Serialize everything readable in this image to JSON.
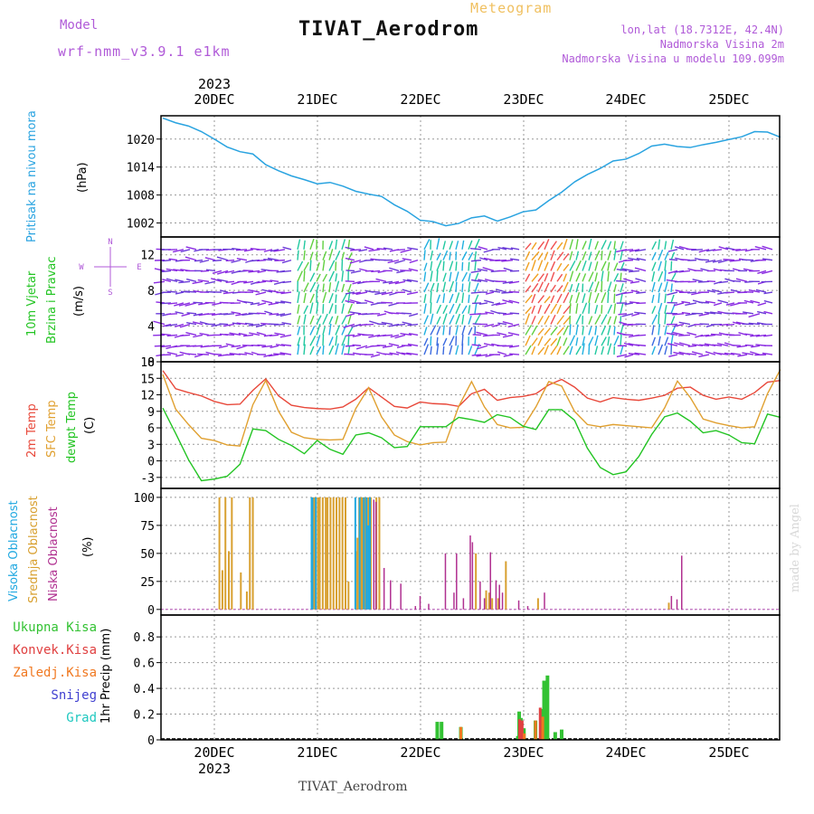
{
  "header": {
    "title": "TIVAT_Aerodrom",
    "model_label": "Model",
    "model_name": "wrf-nmm_v3.9.1 e1km",
    "meteogram_label": "Meteogram",
    "lonlat": "lon,lat (18.7312E, 42.4N)",
    "elevation": "Nadmorska Visina 2m",
    "model_elevation": "Nadmorska Visina u modelu 109.099m",
    "footer": "TIVAT_Aerodrom",
    "watermark": "made by Angel"
  },
  "time_axis": {
    "year": "2023",
    "days": [
      "20DEC",
      "21DEC",
      "22DEC",
      "23DEC",
      "24DEC",
      "25DEC"
    ]
  },
  "colors": {
    "pressure": "#29a3e0",
    "temp2m": "#e8483a",
    "sfc_temp": "#e0a030",
    "dewpoint": "#22c422",
    "high_cloud": "#20a8e0",
    "mid_cloud": "#d8a030",
    "low_cloud": "#b03090",
    "total_precip": "#33c233",
    "conv_precip": "#e04040",
    "frozen_precip": "#f07820",
    "snow": "#4040d0",
    "hail": "#20c8c0",
    "legend_purple": "#b05ad8"
  },
  "panels": {
    "pressure": {
      "label": "Pritisak na nivou mora",
      "unit": "(hPa)"
    },
    "wind": {
      "label": "10m Vjetar",
      "label2": "Brzina i Pravac",
      "unit": "(m/s)",
      "compass_n": "N",
      "compass_s": "S",
      "compass_w": "W",
      "compass_e": "E"
    },
    "temp": {
      "label1": "2m Temp",
      "label2": "SFC Temp",
      "label3": "dewpt Temp",
      "unit": "(C)"
    },
    "cloud": {
      "label1": "Visoka Oblacnost",
      "label2": "Srednja Oblacnost",
      "label3": "Niska Oblacnost",
      "unit": "(%)"
    },
    "precip": {
      "unit": "1hr Precip (mm)",
      "legend": [
        "Ukupna Kisa",
        "Konvek.Kisa",
        "Zaledj.Kisa",
        "Snijeg",
        "Grad"
      ]
    }
  },
  "chart_data": [
    {
      "type": "line",
      "name": "pressure",
      "xlim": [
        0,
        144
      ],
      "ylim": [
        999,
        1025
      ],
      "yticks": [
        1002,
        1008,
        1014,
        1020
      ],
      "x": [
        0,
        3,
        6,
        9,
        12,
        15,
        18,
        21,
        24,
        27,
        30,
        33,
        36,
        39,
        42,
        45,
        48,
        51,
        54,
        57,
        60,
        63,
        66,
        69,
        72,
        75,
        78,
        81,
        84,
        87,
        90,
        93,
        96,
        99,
        102,
        105,
        108,
        111,
        114,
        117,
        120,
        123,
        126,
        129,
        132,
        135,
        138,
        141,
        144
      ],
      "values": [
        1024.5,
        1023.5,
        1022.8,
        1021.6,
        1020.0,
        1018.3,
        1017.3,
        1016.8,
        1014.5,
        1013.2,
        1012.1,
        1011.3,
        1010.4,
        1010.7,
        1009.9,
        1008.8,
        1008.2,
        1007.7,
        1005.9,
        1004.5,
        1002.6,
        1002.3,
        1001.4,
        1001.9,
        1003.1,
        1003.5,
        1002.4,
        1003.3,
        1004.4,
        1004.8,
        1006.8,
        1008.6,
        1010.8,
        1012.4,
        1013.7,
        1015.3,
        1015.7,
        1016.9,
        1018.5,
        1018.9,
        1018.4,
        1018.2,
        1018.8,
        1019.3,
        1019.9,
        1020.5,
        1021.6,
        1021.5,
        1020.4
      ]
    },
    {
      "type": "line",
      "name": "temperature",
      "xlim": [
        0,
        144
      ],
      "ylim": [
        -5,
        18
      ],
      "yticks": [
        -3,
        0,
        3,
        6,
        9,
        12,
        15,
        18
      ],
      "x": [
        0,
        3,
        6,
        9,
        12,
        15,
        18,
        21,
        24,
        27,
        30,
        33,
        36,
        39,
        42,
        45,
        48,
        51,
        54,
        57,
        60,
        63,
        66,
        69,
        72,
        75,
        78,
        81,
        84,
        87,
        90,
        93,
        96,
        99,
        102,
        105,
        108,
        111,
        114,
        117,
        120,
        123,
        126,
        129,
        132,
        135,
        138,
        141,
        144
      ],
      "series": [
        {
          "name": "2m Temp",
          "values": [
            16.4,
            13.1,
            12.4,
            11.8,
            10.8,
            10.2,
            10.3,
            12.8,
            14.9,
            11.8,
            10.1,
            9.7,
            9.5,
            9.4,
            9.8,
            11.2,
            13.3,
            11.6,
            9.9,
            9.6,
            10.7,
            10.4,
            10.3,
            9.9,
            12.2,
            13.0,
            11.0,
            11.5,
            11.7,
            12.2,
            13.8,
            14.8,
            13.4,
            11.4,
            10.7,
            11.5,
            11.2,
            11.0,
            11.4,
            11.9,
            13.2,
            13.4,
            11.9,
            11.2,
            11.6,
            11.2,
            12.4,
            14.3,
            14.6
          ]
        },
        {
          "name": "SFC Temp",
          "values": [
            15.7,
            9.4,
            6.6,
            4.1,
            3.7,
            2.9,
            2.7,
            10.2,
            14.6,
            9.0,
            5.2,
            4.2,
            3.9,
            3.8,
            3.9,
            9.5,
            13.3,
            8.0,
            4.7,
            3.5,
            2.9,
            3.3,
            3.4,
            9.9,
            14.4,
            9.8,
            6.6,
            6.0,
            6.1,
            9.8,
            14.4,
            13.6,
            9.0,
            6.6,
            6.2,
            6.6,
            6.4,
            6.2,
            6.0,
            9.6,
            14.5,
            11.5,
            7.6,
            6.9,
            6.4,
            6.0,
            6.2,
            12.2,
            16.6
          ]
        },
        {
          "name": "dewpt Temp",
          "values": [
            9.6,
            5.0,
            0.2,
            -3.6,
            -3.3,
            -2.8,
            -0.6,
            5.8,
            5.5,
            3.9,
            2.8,
            1.3,
            3.7,
            2.1,
            1.2,
            4.7,
            5.1,
            4.2,
            2.4,
            2.6,
            6.2,
            6.2,
            6.2,
            7.9,
            7.5,
            7.0,
            8.4,
            7.9,
            6.3,
            5.7,
            9.3,
            9.3,
            7.4,
            2.3,
            -1.2,
            -2.5,
            -2.0,
            0.8,
            4.8,
            8.0,
            8.7,
            7.2,
            5.1,
            5.5,
            4.7,
            3.3,
            3.1,
            8.5,
            7.9
          ]
        }
      ]
    },
    {
      "type": "bar",
      "name": "cloud_cover",
      "xlim": [
        0,
        144
      ],
      "ylim": [
        -5,
        108
      ],
      "yticks": [
        0,
        25,
        50,
        75,
        100
      ],
      "series": [
        {
          "name": "Visoka Oblacnost",
          "x": [
            34.8,
            35.0,
            35.8,
            45.0,
            46.0,
            47.0,
            47.6,
            48.0,
            48.4
          ],
          "values": [
            100,
            100,
            100,
            100,
            100,
            100,
            100,
            75,
            100
          ]
        },
        {
          "name": "Srednja Oblacnost",
          "x": [
            13.2,
            13.9,
            14.6,
            15.4,
            16.1,
            18.2,
            19.6,
            20.3,
            21.0,
            35.2,
            35.5,
            36.2,
            36.6,
            37.3,
            38.0,
            38.4,
            39.1,
            39.8,
            40.5,
            41.2,
            41.9,
            42.6,
            43.3,
            45.0,
            45.4,
            45.8,
            46.3,
            46.7,
            47.2,
            47.9,
            48.5,
            49.8,
            50.5,
            73.0,
            75.4,
            76.1,
            76.8,
            78.2,
            80.0,
            87.5,
            118.0
          ]
        },
        {
          "name": "Niska Oblacnost",
          "x": [
            49.2,
            49.7,
            51.6,
            53.1,
            55.5,
            58.9,
            60.0,
            62.0,
            65.9,
            67.9,
            68.5,
            70.1,
            71.7,
            72.2,
            74.0,
            75.0,
            76.4,
            77.7,
            78.5,
            79.2,
            83.0,
            85.1,
            89.0,
            118.6,
            119.9,
            121.0
          ],
          "values": [
            98,
            96,
            37,
            26,
            23,
            3,
            12,
            5,
            50,
            15,
            50,
            10,
            66,
            60,
            25,
            10,
            51,
            26,
            22,
            15,
            8,
            3,
            15,
            12,
            9,
            48
          ]
        }
      ],
      "mid_values": [
        100,
        35,
        100,
        52,
        100,
        33,
        16,
        100,
        100,
        100,
        100,
        100,
        100,
        100,
        100,
        100,
        100,
        100,
        100,
        100,
        100,
        100,
        25,
        52,
        64,
        100,
        100,
        100,
        100,
        100,
        100,
        100,
        100,
        50,
        17,
        15,
        10,
        10,
        43,
        10,
        6
      ]
    },
    {
      "type": "bar",
      "name": "precipitation",
      "xlim": [
        0,
        144
      ],
      "ylim": [
        0,
        0.97
      ],
      "yticks": [
        0,
        0.2,
        0.4,
        0.6,
        0.8
      ],
      "series": [
        {
          "name": "Ukupna Kisa",
          "x": [
            64.0,
            65.0,
            69.5,
            82.8,
            83.1,
            83.5,
            84.2,
            86.9,
            88.4,
            88.9,
            89.7,
            91.5,
            93.0
          ],
          "values": [
            0.14,
            0.14,
            0.1,
            0.03,
            0.22,
            0.17,
            0.09,
            0.15,
            0.24,
            0.46,
            0.5,
            0.06,
            0.08
          ]
        },
        {
          "name": "Konvek.Kisa",
          "x": [
            83.2,
            83.8,
            88.0
          ],
          "values": [
            0.16,
            0.15,
            0.25
          ]
        },
        {
          "name": "Zaledj.Kisa",
          "x": [
            69.5,
            84.3,
            86.9,
            88.6
          ],
          "values": [
            0.1,
            0.05,
            0.15,
            0.18
          ]
        }
      ]
    }
  ]
}
